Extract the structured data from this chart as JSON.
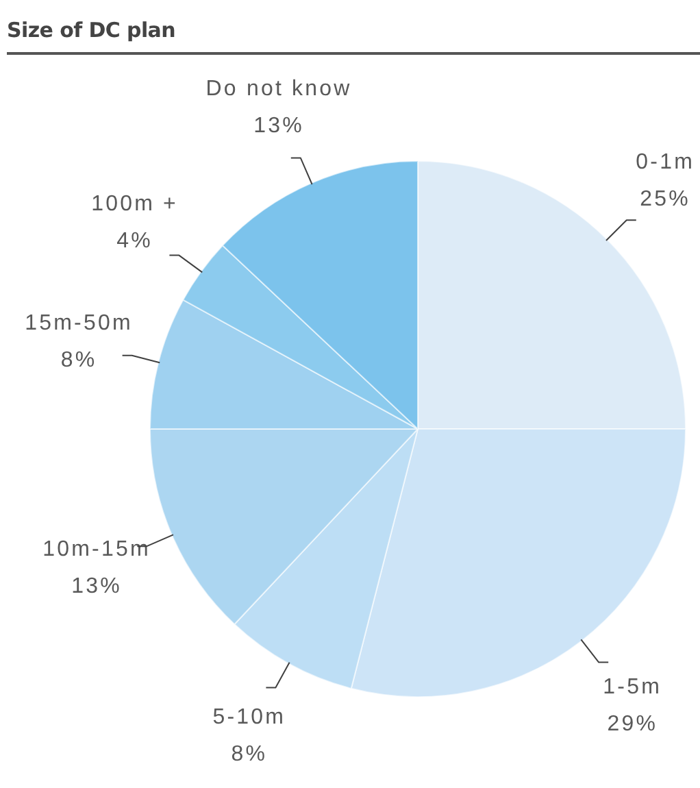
{
  "chart_data": {
    "type": "pie",
    "title": "Size of DC plan",
    "categories": [
      "0-1m",
      "1-5m",
      "5-10m",
      "10m-15m",
      "15m-50m",
      "100m +",
      "Do not know"
    ],
    "values": [
      25,
      29,
      8,
      13,
      8,
      4,
      13
    ],
    "value_labels": [
      "25%",
      "29%",
      "8%",
      "13%",
      "8%",
      "4%",
      "13%"
    ],
    "colors": [
      "#ddebf7",
      "#cde4f7",
      "#bddef5",
      "#acd6f1",
      "#9fd1f0",
      "#8ccbee",
      "#7cc3ec"
    ]
  }
}
